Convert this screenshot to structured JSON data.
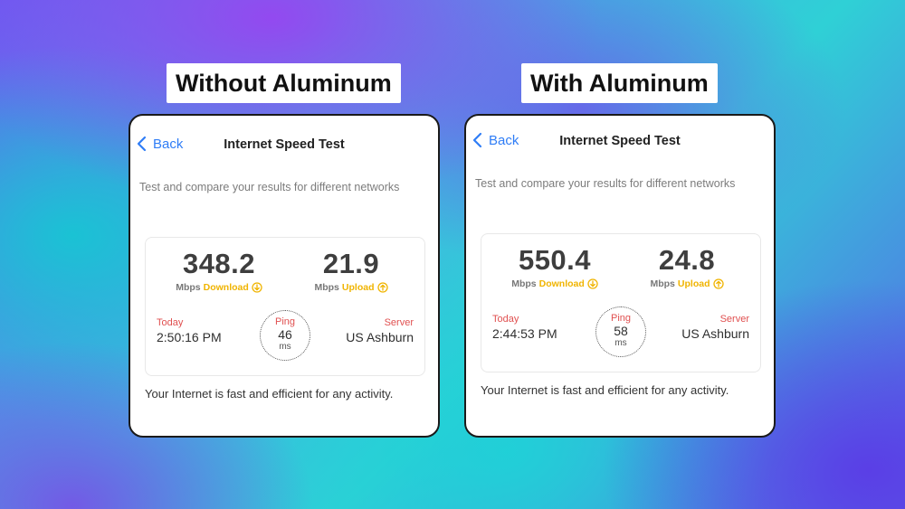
{
  "labels": {
    "left": "Without Aluminum",
    "right": "With Aluminum"
  },
  "panels": [
    {
      "nav": {
        "back": "Back",
        "title": "Internet Speed Test"
      },
      "subtitle": "Test and compare your results for different networks",
      "download": {
        "value": "348.2",
        "units": "Mbps",
        "label": "Download",
        "icon": "arrow-down-circle-icon"
      },
      "upload": {
        "value": "21.9",
        "units": "Mbps",
        "label": "Upload",
        "icon": "arrow-up-circle-icon"
      },
      "today": {
        "label": "Today",
        "time": "2:50:16 PM"
      },
      "ping": {
        "label": "Ping",
        "value": "46",
        "units": "ms"
      },
      "server": {
        "label": "Server",
        "location": "US  Ashburn"
      },
      "footer": "Your Internet is fast and efficient for any activity."
    },
    {
      "nav": {
        "back": "Back",
        "title": "Internet Speed Test"
      },
      "subtitle": "Test and compare your results for different networks",
      "download": {
        "value": "550.4",
        "units": "Mbps",
        "label": "Download",
        "icon": "arrow-down-circle-icon"
      },
      "upload": {
        "value": "24.8",
        "units": "Mbps",
        "label": "Upload",
        "icon": "arrow-up-circle-icon"
      },
      "today": {
        "label": "Today",
        "time": "2:44:53 PM"
      },
      "ping": {
        "label": "Ping",
        "value": "58",
        "units": "ms"
      },
      "server": {
        "label": "Server",
        "location": "US  Ashburn"
      },
      "footer": "Your Internet is fast and efficient for any activity."
    }
  ],
  "colors": {
    "accent_blue": "#2f7df6",
    "speed_label": "#f0b400",
    "meta_label": "#e05050"
  }
}
